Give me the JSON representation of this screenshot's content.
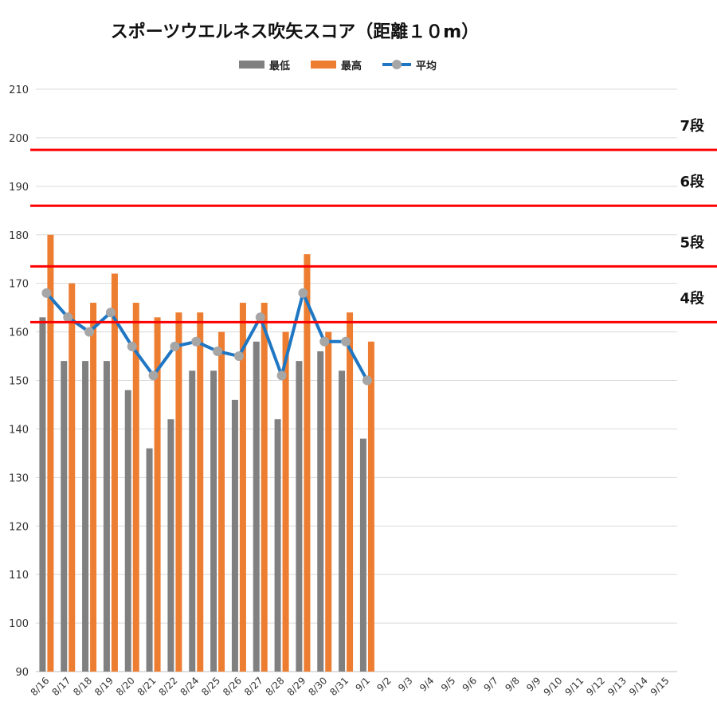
{
  "chart_data": {
    "type": "bar",
    "title": "スポーツウエルネス吹矢スコア（距離１０m）",
    "categories": [
      "8/16",
      "8/17",
      "8/18",
      "8/19",
      "8/20",
      "8/21",
      "8/22",
      "8/24",
      "8/25",
      "8/26",
      "8/27",
      "8/28",
      "8/29",
      "8/30",
      "8/31",
      "9/1",
      "9/2",
      "9/3",
      "9/4",
      "9/5",
      "9/6",
      "9/7",
      "9/8",
      "9/9",
      "9/10",
      "9/11",
      "9/12",
      "9/13",
      "9/14",
      "9/15"
    ],
    "series": [
      {
        "name": "最低",
        "type": "bar",
        "color": "#808080",
        "values": [
          163,
          154,
          154,
          154,
          148,
          136,
          142,
          152,
          152,
          146,
          158,
          142,
          154,
          156,
          152,
          138,
          null,
          null,
          null,
          null,
          null,
          null,
          null,
          null,
          null,
          null,
          null,
          null,
          null,
          null
        ]
      },
      {
        "name": "最高",
        "type": "bar",
        "color": "#ed7d31",
        "values": [
          180,
          170,
          166,
          172,
          166,
          163,
          164,
          164,
          160,
          166,
          166,
          160,
          176,
          160,
          164,
          158,
          null,
          null,
          null,
          null,
          null,
          null,
          null,
          null,
          null,
          null,
          null,
          null,
          null,
          null
        ]
      },
      {
        "name": "平均",
        "type": "line",
        "color": "#1f77c4",
        "marker_color": "#a6a6a6",
        "values": [
          168,
          163,
          160,
          164,
          157,
          151,
          157,
          158,
          156,
          155,
          163,
          151,
          168,
          158,
          158,
          150,
          null,
          null,
          null,
          null,
          null,
          null,
          null,
          null,
          null,
          null,
          null,
          null,
          null,
          null
        ]
      }
    ],
    "ylim": [
      90,
      210
    ],
    "yticks": [
      90,
      100,
      110,
      120,
      130,
      140,
      150,
      160,
      170,
      180,
      190,
      200,
      210
    ],
    "grid": true,
    "legend_position": "top",
    "reference_lines": [
      {
        "label": "7段",
        "value": 197.5,
        "color": "#ff0000"
      },
      {
        "label": "6段",
        "value": 186,
        "color": "#ff0000"
      },
      {
        "label": "5段",
        "value": 173.5,
        "color": "#ff0000"
      },
      {
        "label": "4段",
        "value": 162,
        "color": "#ff0000"
      }
    ]
  }
}
